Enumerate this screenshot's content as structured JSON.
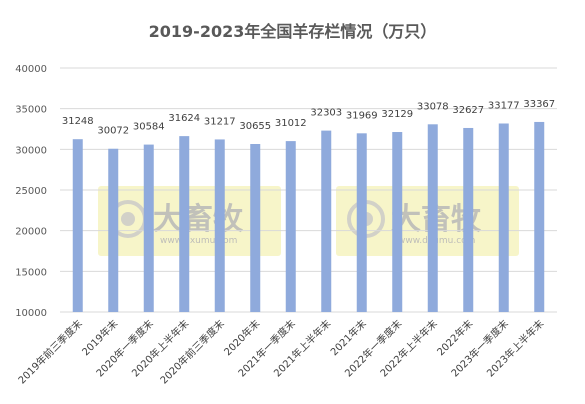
{
  "chart_data": {
    "type": "bar",
    "title": "2019-2023年全国羊存栏情况（万只）",
    "categories": [
      "2019年前三季度末",
      "2019年末",
      "2020年一季度末",
      "2020年上半年末",
      "2020年前三季度末",
      "2020年末",
      "2021年一季度末",
      "2021年上半年末",
      "2021年末",
      "2022年一季度末",
      "2022年上半年末",
      "2022年末",
      "2023年一季度末",
      "2023年上半年末"
    ],
    "values": [
      31248,
      30072,
      30584,
      31624,
      31217,
      30655,
      31012,
      32303,
      31969,
      32129,
      33078,
      32627,
      33177,
      33367
    ],
    "ylim": [
      10000,
      40000
    ],
    "yticks": [
      10000,
      15000,
      20000,
      25000,
      30000,
      35000,
      40000
    ],
    "grid": true,
    "color": "#8faadc",
    "watermark": {
      "name": "大畜牧",
      "site": "www.dxumu.com"
    }
  }
}
